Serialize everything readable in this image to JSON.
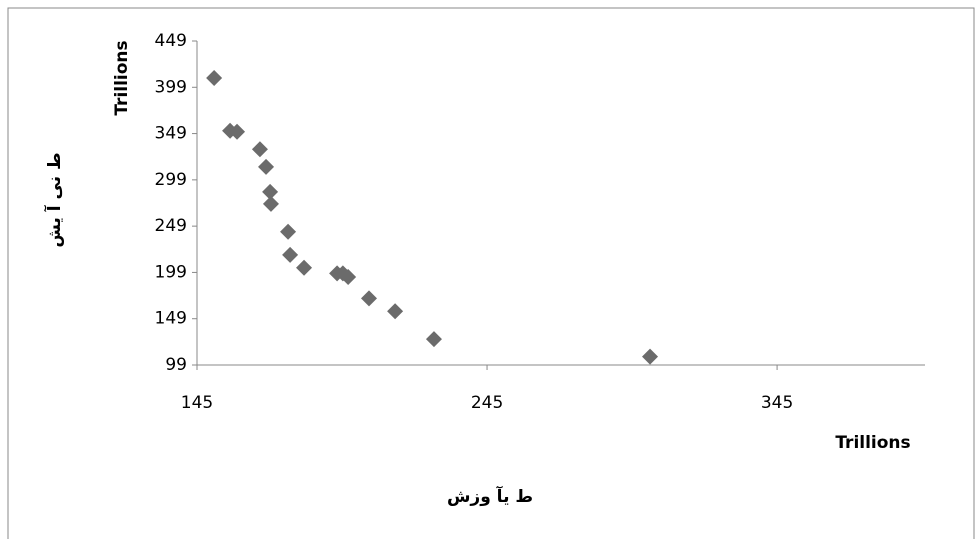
{
  "chart_data": {
    "type": "scatter",
    "x_unit": "Trillions",
    "y_unit": "Trillions",
    "x_label": "ط یآ وزش",
    "y_label": "ط نی آ یش",
    "color": "#6b6b6b",
    "x": [
      150.9,
      156.4,
      158.8,
      166.7,
      168.8,
      170.2,
      170.5,
      176.4,
      177.1,
      181.9,
      193.3,
      195.3,
      197.1,
      204.3,
      213.3,
      226.7,
      301.2
    ],
    "values": [
      409,
      352,
      351,
      332,
      313,
      286,
      273,
      243,
      218,
      204,
      198,
      198,
      194,
      171,
      157,
      127,
      108
    ],
    "xlim": [
      145,
      396
    ],
    "xticks": [
      145,
      245,
      345
    ],
    "ylim": [
      99,
      449
    ],
    "yticks": [
      99,
      149,
      199,
      249,
      299,
      349,
      399,
      449
    ]
  }
}
